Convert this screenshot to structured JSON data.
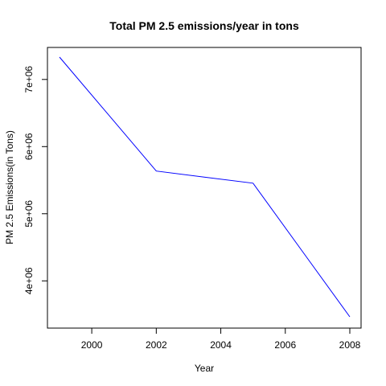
{
  "chart_data": {
    "type": "line",
    "title": "Total PM 2.5 emissions/year in tons",
    "xlabel": "Year",
    "ylabel": "PM 2.5 Emissions(in Tons)",
    "x": [
      1999,
      2002,
      2005,
      2008
    ],
    "series": [
      {
        "values": [
          7332967,
          5635780,
          5454703,
          3464206
        ]
      }
    ],
    "x_ticks": [
      "2000",
      "2002",
      "2004",
      "2006",
      "2008"
    ],
    "y_ticks": [
      "4e+06",
      "5e+06",
      "6e+06",
      "7e+06"
    ],
    "xlim": [
      1999,
      2008
    ],
    "ylim": [
      3464206,
      7332967
    ],
    "grid": false,
    "legend": "none",
    "colors": {
      "line": "#0000ff",
      "axis": "#000000",
      "background": "#ffffff"
    }
  }
}
